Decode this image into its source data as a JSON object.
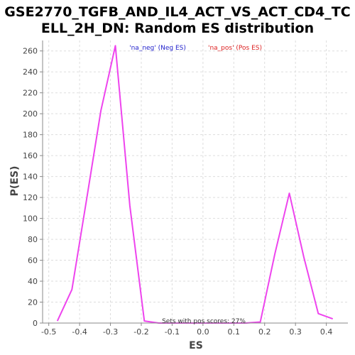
{
  "chart_data": {
    "type": "line",
    "title_lines": [
      "GSE2770_TGFB_AND_IL4_ACT_VS_ACT_CD4_TC",
      "ELL_2H_DN: Random ES distribution"
    ],
    "xlabel": "ES",
    "ylabel": "P(ES)",
    "xlim": [
      -0.52,
      0.47
    ],
    "ylim": [
      0,
      270
    ],
    "x_ticks": [
      -0.5,
      -0.4,
      -0.3,
      -0.2,
      -0.1,
      0.0,
      0.1,
      0.2,
      0.3,
      0.4
    ],
    "x_tick_labels": [
      "-0.5",
      "-0.4",
      "-0.3",
      "-0.2",
      "-0.1",
      "0.0",
      "0.1",
      "0.2",
      "0.3",
      "0.4"
    ],
    "y_ticks": [
      0,
      20,
      40,
      60,
      80,
      100,
      120,
      140,
      160,
      180,
      200,
      220,
      240,
      260
    ],
    "y_tick_labels": [
      "0",
      "20",
      "40",
      "60",
      "80",
      "100",
      "120",
      "140",
      "160",
      "180",
      "200",
      "220",
      "240",
      "260"
    ],
    "grid": true,
    "series": [
      {
        "color": "#ee44ee",
        "x": [
          -0.472,
          -0.425,
          -0.378,
          -0.331,
          -0.284,
          -0.237,
          -0.19,
          -0.143,
          -0.096,
          -0.049,
          -0.002,
          0.045,
          0.092,
          0.139,
          0.186,
          0.233,
          0.28,
          0.327,
          0.374,
          0.421
        ],
        "y": [
          2,
          32,
          117,
          203,
          265,
          112,
          2,
          0,
          0,
          0,
          0,
          0,
          0,
          0,
          1,
          66,
          124,
          63,
          9,
          4
        ]
      }
    ],
    "legend": {
      "placement": "top-center",
      "entries": [
        {
          "label": "'na_neg' (Neg ES)",
          "color": "#2222cc"
        },
        {
          "label": "'na_pos' (Pos ES)",
          "color": "#dd2222"
        }
      ]
    },
    "annotation": "Sets with pos scores: 27%",
    "colors": {
      "line": "#ee44ee",
      "grid": "#dddddd",
      "axis": "#888888",
      "background": "#ffffff"
    }
  }
}
